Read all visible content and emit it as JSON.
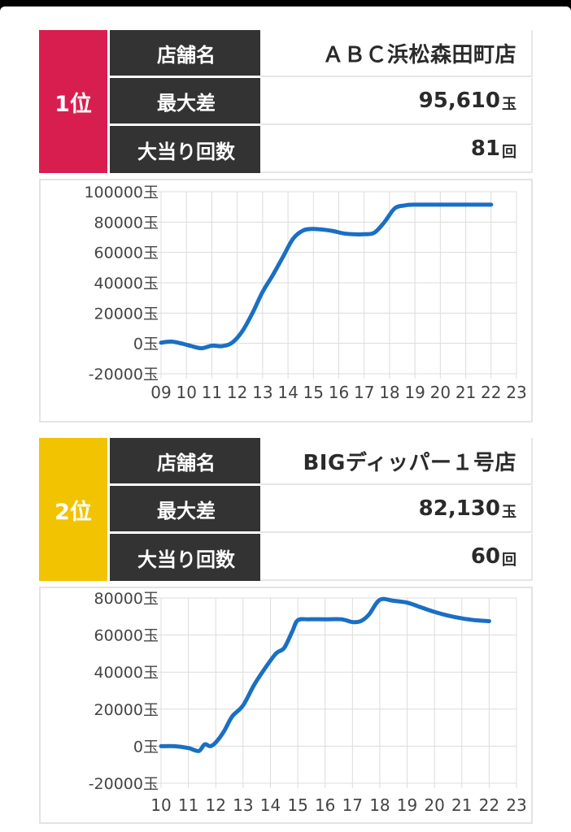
{
  "cards": [
    {
      "rank": "1位",
      "rank_color": "#d81e4f",
      "rows": {
        "store_label": "店舗名",
        "store_value": "ＡＢＣ浜松森田町店",
        "max_label": "最大差",
        "max_value": "95,610",
        "max_unit": "玉",
        "hits_label": "大当り回数",
        "hits_value": "81",
        "hits_unit": "回"
      }
    },
    {
      "rank": "2位",
      "rank_color": "#f2c300",
      "rows": {
        "store_label": "店舗名",
        "store_value": "BIGディッパー１号店",
        "max_label": "最大差",
        "max_value": "82,130",
        "max_unit": "玉",
        "hits_label": "大当り回数",
        "hits_value": "60",
        "hits_unit": "回"
      }
    }
  ],
  "chart_data": [
    {
      "type": "line",
      "line_color": "#1a6fc4",
      "grid": true,
      "xlim": [
        9,
        23
      ],
      "ylim": [
        -20000,
        100000
      ],
      "x_ticks": [
        9,
        10,
        11,
        12,
        13,
        14,
        15,
        16,
        17,
        18,
        19,
        20,
        21,
        22,
        23
      ],
      "x_tick_labels": [
        "09",
        "10",
        "11",
        "12",
        "13",
        "14",
        "15",
        "16",
        "17",
        "18",
        "19",
        "20",
        "21",
        "22",
        "23"
      ],
      "y_ticks": [
        -20000,
        0,
        20000,
        40000,
        60000,
        80000,
        100000
      ],
      "y_tick_labels": [
        "-20000玉",
        "0玉",
        "20000玉",
        "40000玉",
        "60000玉",
        "80000玉",
        "100000玉"
      ],
      "series": [
        {
          "x": [
            9.0,
            9.4,
            9.8,
            10.2,
            10.6,
            11.0,
            11.4,
            11.8,
            12.2,
            12.6,
            13.0,
            13.4,
            13.8,
            14.2,
            14.6,
            15.0,
            15.4,
            15.8,
            16.2,
            16.6,
            17.0,
            17.4,
            17.8,
            18.2,
            18.6,
            19.0,
            19.4,
            20.0,
            21.0,
            22.0
          ],
          "values": [
            500,
            1200,
            0,
            -1800,
            -3200,
            -1500,
            -1800,
            500,
            8000,
            20000,
            34000,
            45000,
            57000,
            69000,
            74500,
            75500,
            75000,
            74000,
            72500,
            72000,
            72000,
            73000,
            80000,
            89000,
            91000,
            91500,
            91500,
            91500,
            91500,
            91500
          ]
        }
      ]
    },
    {
      "type": "line",
      "line_color": "#1a6fc4",
      "grid": true,
      "xlim": [
        10,
        23
      ],
      "ylim": [
        -20000,
        80000
      ],
      "x_ticks": [
        10,
        11,
        12,
        13,
        14,
        15,
        16,
        17,
        18,
        19,
        20,
        21,
        22,
        23
      ],
      "x_tick_labels": [
        "10",
        "11",
        "12",
        "13",
        "14",
        "15",
        "16",
        "17",
        "18",
        "19",
        "20",
        "21",
        "22",
        "23"
      ],
      "y_ticks": [
        -20000,
        0,
        20000,
        40000,
        60000,
        80000
      ],
      "y_tick_labels": [
        "-20000玉",
        "0玉",
        "20000玉",
        "40000玉",
        "60000玉",
        "80000玉"
      ],
      "series": [
        {
          "x": [
            10.0,
            10.5,
            11.0,
            11.2,
            11.4,
            11.6,
            11.8,
            12.0,
            12.3,
            12.6,
            13.0,
            13.4,
            13.8,
            14.2,
            14.5,
            14.8,
            15.0,
            15.4,
            16.0,
            16.6,
            17.0,
            17.3,
            17.6,
            18.0,
            18.5,
            19.0,
            19.5,
            20.0,
            20.5,
            21.0,
            21.5,
            22.0
          ],
          "values": [
            0,
            0,
            -1000,
            -2000,
            -2500,
            1000,
            0,
            2000,
            8000,
            16000,
            22000,
            33000,
            42000,
            50000,
            53000,
            62000,
            68000,
            68500,
            68500,
            68500,
            67000,
            67500,
            71000,
            79000,
            78500,
            77500,
            75000,
            72500,
            70500,
            69000,
            68000,
            67500
          ]
        }
      ]
    }
  ]
}
